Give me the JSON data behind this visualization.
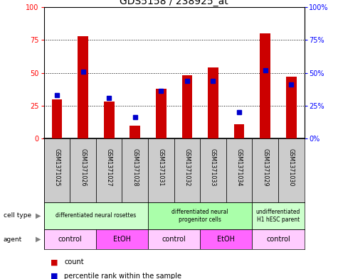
{
  "title": "GDS5158 / 238925_at",
  "samples": [
    "GSM1371025",
    "GSM1371026",
    "GSM1371027",
    "GSM1371028",
    "GSM1371031",
    "GSM1371032",
    "GSM1371033",
    "GSM1371034",
    "GSM1371029",
    "GSM1371030"
  ],
  "counts": [
    30,
    78,
    28,
    10,
    38,
    48,
    54,
    11,
    80,
    47
  ],
  "percentiles": [
    33,
    51,
    31,
    16,
    36,
    44,
    44,
    20,
    52,
    41
  ],
  "bar_color": "#cc0000",
  "dot_color": "#0000cc",
  "background_color": "#ffffff",
  "ylim": [
    0,
    100
  ],
  "yticks": [
    0,
    25,
    50,
    75,
    100
  ],
  "cell_type_groups": [
    {
      "label": "differentiated neural rosettes",
      "start": 0,
      "end": 4,
      "color": "#ccffcc"
    },
    {
      "label": "differentiated neural\nprogenitor cells",
      "start": 4,
      "end": 8,
      "color": "#aaffaa"
    },
    {
      "label": "undifferentiated\nH1 hESC parent",
      "start": 8,
      "end": 10,
      "color": "#ccffcc"
    }
  ],
  "agent_groups": [
    {
      "label": "control",
      "start": 0,
      "end": 2,
      "color": "#ffccff"
    },
    {
      "label": "EtOH",
      "start": 2,
      "end": 4,
      "color": "#ff66ff"
    },
    {
      "label": "control",
      "start": 4,
      "end": 6,
      "color": "#ffccff"
    },
    {
      "label": "EtOH",
      "start": 6,
      "end": 8,
      "color": "#ff66ff"
    },
    {
      "label": "control",
      "start": 8,
      "end": 10,
      "color": "#ffccff"
    }
  ],
  "legend_count_label": "count",
  "legend_percentile_label": "percentile rank within the sample"
}
